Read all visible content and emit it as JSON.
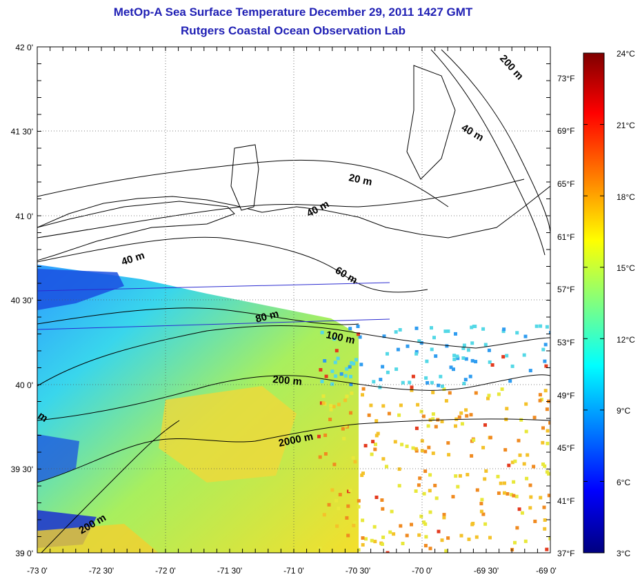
{
  "header": {
    "title_line1": "MetOp-A Sea Surface Temperature December 29, 2011 1427 GMT",
    "title_line2": "Rutgers Coastal Ocean Observation Lab"
  },
  "map": {
    "latitude_ticks": [
      "42 0'",
      "41 30'",
      "41 0'",
      "40 30'",
      "40 0'",
      "39 30'",
      "39 0'"
    ],
    "longitude_ticks": [
      "-73 0'",
      "-72 30'",
      "-72 0'",
      "-71 30'",
      "-71 0'",
      "-70 30'",
      "-70 0'",
      "-69 30'",
      "-69 0'"
    ],
    "fahrenheit_ticks": [
      "73°F",
      "69°F",
      "65°F",
      "61°F",
      "57°F",
      "53°F",
      "49°F",
      "45°F",
      "41°F",
      "37°F"
    ],
    "isobath_labels": {
      "m20": "20 m",
      "m40_north": "40 m",
      "m40_center": "40 m",
      "m40_west": "40 m",
      "m60": "60 m",
      "m80": "80 m",
      "m100": "100 m",
      "m200_center": "200 m",
      "m200_northeast": "200 m",
      "m200_southwest": "200 m",
      "m2000": "2000 m",
      "m_edge": "m"
    }
  },
  "colorbar": {
    "labels": [
      "24°C",
      "21°C",
      "18°C",
      "15°C",
      "12°C",
      "9°C",
      "6°C",
      "3°C"
    ],
    "colors": [
      "#7f0000",
      "#ff0000",
      "#ff8000",
      "#ffff00",
      "#80ff80",
      "#00ffff",
      "#0080ff",
      "#0000ff",
      "#00007f"
    ]
  },
  "colors": {
    "title": "#1f1fb4",
    "land_fill": "#ffffff",
    "contour": "#000000",
    "track_line": "#2a2ad0"
  }
}
